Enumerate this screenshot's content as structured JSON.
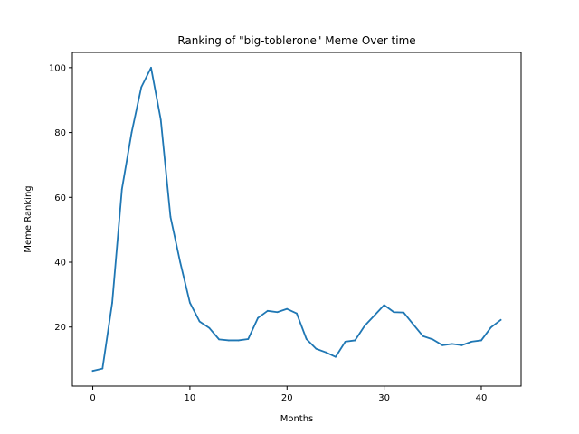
{
  "chart_data": {
    "type": "line",
    "title": "Ranking of \"big-toblerone\" Meme Over time",
    "xlabel": "Months",
    "ylabel": "Meme Ranking",
    "xlim": [
      -2.1,
      44.1
    ],
    "ylim": [
      1.8,
      104.7
    ],
    "xticks": [
      0,
      10,
      20,
      30,
      40
    ],
    "yticks": [
      20,
      40,
      60,
      80,
      100
    ],
    "grid": false,
    "color": "#1f77b4",
    "series": [
      {
        "x": [
          0,
          1,
          2,
          3,
          4,
          5,
          6,
          7,
          8,
          9,
          10,
          11,
          12,
          13,
          14,
          15,
          16,
          17,
          18,
          19,
          20,
          21,
          22,
          23,
          24,
          25,
          26,
          27,
          28,
          29,
          30,
          31,
          32,
          33,
          34,
          35,
          36,
          37,
          38,
          39,
          40,
          41,
          42
        ],
        "values": [
          6.5,
          7.2,
          27.5,
          62.5,
          80,
          94,
          100,
          84,
          54,
          40,
          27.5,
          21.7,
          19.7,
          16.2,
          15.9,
          15.9,
          16.3,
          22.8,
          25.0,
          24.6,
          25.6,
          24.2,
          16.3,
          13.3,
          12.2,
          10.8,
          15.5,
          15.9,
          20.4,
          23.6,
          26.8,
          24.6,
          24.5,
          20.8,
          17.2,
          16.2,
          14.4,
          14.8,
          14.4,
          15.5,
          15.9,
          19.9,
          22.2
        ]
      }
    ]
  }
}
